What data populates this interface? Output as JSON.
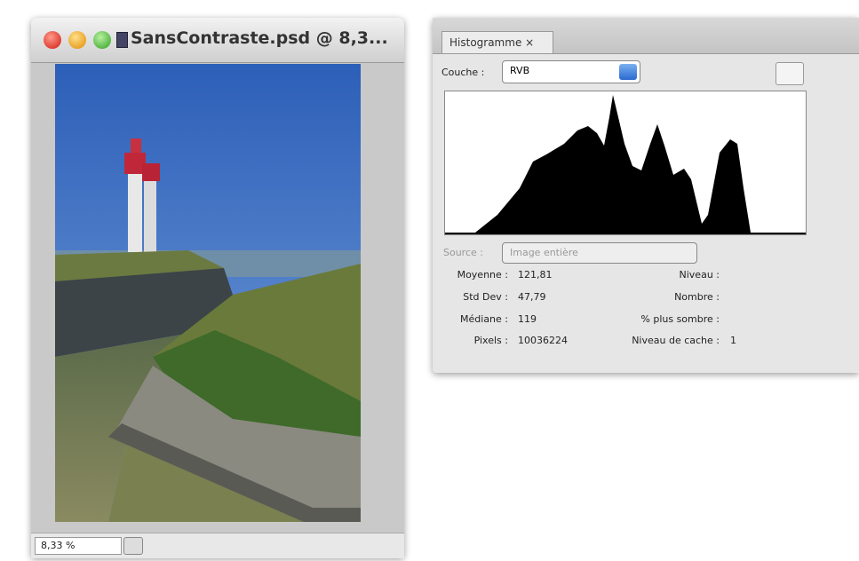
{
  "document_window": {
    "title": "SansContraste.psd @ 8,3...",
    "zoom": "8,33 %"
  },
  "histogram_panel": {
    "tab": "Histogramme",
    "channel_label": "Couche :",
    "channel_value": "RVB",
    "source_label": "Source :",
    "source_value": "Image entière",
    "stats_left": [
      {
        "label": "Moyenne :",
        "value": "121,81"
      },
      {
        "label": "Std Dev :",
        "value": "47,79"
      },
      {
        "label": "Médiane :",
        "value": "119"
      },
      {
        "label": "Pixels :",
        "value": "10036224"
      }
    ],
    "stats_right": [
      {
        "label": "Niveau :",
        "value": null
      },
      {
        "label": "Nombre :",
        "value": null
      },
      {
        "label": "% plus sombre :",
        "value": null
      },
      {
        "label": "Niveau de cache :",
        "value": "1"
      }
    ]
  }
}
